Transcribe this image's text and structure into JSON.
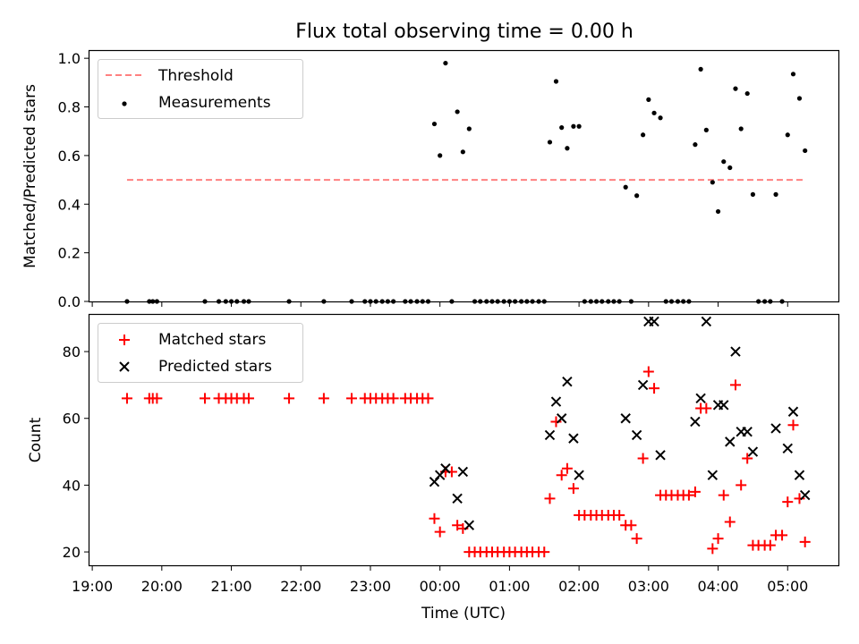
{
  "title": "Flux total observing time = 0.00 h",
  "chart_data": [
    {
      "type": "scatter",
      "ylabel": "Matched/Predicted stars",
      "ylim": [
        0,
        1.03
      ],
      "xlim": [
        18.96,
        29.73
      ],
      "yticks": [
        0.0,
        0.2,
        0.4,
        0.6,
        0.8,
        1.0
      ],
      "ytick_labels": [
        "0.0",
        "0.2",
        "0.4",
        "0.6",
        "0.8",
        "1.0"
      ],
      "legend_position": "top-left",
      "threshold": {
        "name": "Threshold",
        "value": 0.5,
        "x_range": [
          19.5,
          29.23
        ],
        "color": "#ff8080"
      },
      "series": [
        {
          "name": "Measurements",
          "marker": "dot",
          "color": "#000000",
          "points": [
            [
              19.5,
              0
            ],
            [
              19.82,
              0
            ],
            [
              19.87,
              0
            ],
            [
              19.93,
              0
            ],
            [
              20.62,
              0
            ],
            [
              20.82,
              0
            ],
            [
              20.92,
              0
            ],
            [
              21.0,
              0
            ],
            [
              21.08,
              0
            ],
            [
              21.18,
              0
            ],
            [
              21.25,
              0
            ],
            [
              21.83,
              0
            ],
            [
              22.33,
              0
            ],
            [
              22.73,
              0
            ],
            [
              22.92,
              0
            ],
            [
              23.0,
              0
            ],
            [
              23.08,
              0
            ],
            [
              23.17,
              0
            ],
            [
              23.25,
              0
            ],
            [
              23.33,
              0
            ],
            [
              23.5,
              0
            ],
            [
              23.58,
              0
            ],
            [
              23.67,
              0
            ],
            [
              23.75,
              0
            ],
            [
              23.83,
              0
            ],
            [
              23.92,
              0.73
            ],
            [
              24.0,
              0.6
            ],
            [
              24.08,
              0.98
            ],
            [
              24.17,
              0
            ],
            [
              24.25,
              0.78
            ],
            [
              24.33,
              0.615
            ],
            [
              24.42,
              0.71
            ],
            [
              24.5,
              0
            ],
            [
              24.58,
              0
            ],
            [
              24.67,
              0
            ],
            [
              24.75,
              0
            ],
            [
              24.83,
              0
            ],
            [
              24.92,
              0
            ],
            [
              25.0,
              0
            ],
            [
              25.08,
              0
            ],
            [
              25.17,
              0
            ],
            [
              25.25,
              0
            ],
            [
              25.33,
              0
            ],
            [
              25.42,
              0
            ],
            [
              25.5,
              0
            ],
            [
              25.58,
              0.655
            ],
            [
              25.67,
              0.905
            ],
            [
              25.75,
              0.715
            ],
            [
              25.83,
              0.63
            ],
            [
              25.92,
              0.72
            ],
            [
              26.0,
              0.72
            ],
            [
              26.08,
              0
            ],
            [
              26.17,
              0
            ],
            [
              26.25,
              0
            ],
            [
              26.33,
              0
            ],
            [
              26.42,
              0
            ],
            [
              26.5,
              0
            ],
            [
              26.58,
              0
            ],
            [
              26.67,
              0.47
            ],
            [
              26.75,
              0
            ],
            [
              26.83,
              0.435
            ],
            [
              26.92,
              0.685
            ],
            [
              27.0,
              0.83
            ],
            [
              27.08,
              0.775
            ],
            [
              27.17,
              0.755
            ],
            [
              27.25,
              0
            ],
            [
              27.33,
              0
            ],
            [
              27.42,
              0
            ],
            [
              27.5,
              0
            ],
            [
              27.58,
              0
            ],
            [
              27.67,
              0.645
            ],
            [
              27.75,
              0.955
            ],
            [
              27.83,
              0.705
            ],
            [
              27.92,
              0.49
            ],
            [
              28.0,
              0.37
            ],
            [
              28.08,
              0.575
            ],
            [
              28.17,
              0.55
            ],
            [
              28.25,
              0.875
            ],
            [
              28.33,
              0.71
            ],
            [
              28.42,
              0.855
            ],
            [
              28.5,
              0.44
            ],
            [
              28.58,
              0
            ],
            [
              28.67,
              0
            ],
            [
              28.75,
              0
            ],
            [
              28.83,
              0.44
            ],
            [
              28.92,
              0
            ],
            [
              29.0,
              0.685
            ],
            [
              29.08,
              0.935
            ],
            [
              29.17,
              0.835
            ],
            [
              29.25,
              0.62
            ]
          ]
        }
      ]
    },
    {
      "type": "scatter",
      "ylabel": "Count",
      "xlabel": "Time (UTC)",
      "ylim": [
        16,
        91
      ],
      "xlim": [
        18.96,
        29.73
      ],
      "yticks": [
        20,
        40,
        60,
        80
      ],
      "ytick_labels": [
        "20",
        "40",
        "60",
        "80"
      ],
      "xticks": [
        19,
        20,
        21,
        22,
        23,
        24,
        25,
        26,
        27,
        28,
        29
      ],
      "xtick_labels": [
        "19:00",
        "20:00",
        "21:00",
        "22:00",
        "23:00",
        "00:00",
        "01:00",
        "02:00",
        "03:00",
        "04:00",
        "05:00"
      ],
      "legend_position": "top-left",
      "series": [
        {
          "name": "Matched stars",
          "marker": "plus",
          "color": "#ff0000",
          "points": [
            [
              19.5,
              66
            ],
            [
              19.82,
              66
            ],
            [
              19.87,
              66
            ],
            [
              19.93,
              66
            ],
            [
              20.62,
              66
            ],
            [
              20.82,
              66
            ],
            [
              20.92,
              66
            ],
            [
              21.0,
              66
            ],
            [
              21.08,
              66
            ],
            [
              21.18,
              66
            ],
            [
              21.25,
              66
            ],
            [
              21.83,
              66
            ],
            [
              22.33,
              66
            ],
            [
              22.73,
              66
            ],
            [
              22.92,
              66
            ],
            [
              23.0,
              66
            ],
            [
              23.08,
              66
            ],
            [
              23.17,
              66
            ],
            [
              23.25,
              66
            ],
            [
              23.33,
              66
            ],
            [
              23.5,
              66
            ],
            [
              23.58,
              66
            ],
            [
              23.67,
              66
            ],
            [
              23.75,
              66
            ],
            [
              23.83,
              66
            ],
            [
              23.92,
              30
            ],
            [
              24.0,
              26
            ],
            [
              24.08,
              44
            ],
            [
              24.17,
              44
            ],
            [
              24.25,
              28
            ],
            [
              24.33,
              27
            ],
            [
              24.42,
              20
            ],
            [
              24.5,
              20
            ],
            [
              24.58,
              20
            ],
            [
              24.67,
              20
            ],
            [
              24.75,
              20
            ],
            [
              24.83,
              20
            ],
            [
              24.92,
              20
            ],
            [
              25.0,
              20
            ],
            [
              25.08,
              20
            ],
            [
              25.17,
              20
            ],
            [
              25.25,
              20
            ],
            [
              25.33,
              20
            ],
            [
              25.42,
              20
            ],
            [
              25.5,
              20
            ],
            [
              25.58,
              36
            ],
            [
              25.67,
              59
            ],
            [
              25.75,
              43
            ],
            [
              25.83,
              45
            ],
            [
              25.92,
              39
            ],
            [
              26.0,
              31
            ],
            [
              26.08,
              31
            ],
            [
              26.17,
              31
            ],
            [
              26.25,
              31
            ],
            [
              26.33,
              31
            ],
            [
              26.42,
              31
            ],
            [
              26.5,
              31
            ],
            [
              26.58,
              31
            ],
            [
              26.67,
              28
            ],
            [
              26.75,
              28
            ],
            [
              26.83,
              24
            ],
            [
              26.92,
              48
            ],
            [
              27.0,
              74
            ],
            [
              27.08,
              69
            ],
            [
              27.17,
              37
            ],
            [
              27.25,
              37
            ],
            [
              27.33,
              37
            ],
            [
              27.42,
              37
            ],
            [
              27.5,
              37
            ],
            [
              27.58,
              37
            ],
            [
              27.67,
              38
            ],
            [
              27.75,
              63
            ],
            [
              27.83,
              63
            ],
            [
              27.92,
              21
            ],
            [
              28.0,
              24
            ],
            [
              28.08,
              37
            ],
            [
              28.17,
              29
            ],
            [
              28.25,
              70
            ],
            [
              28.33,
              40
            ],
            [
              28.42,
              48
            ],
            [
              28.5,
              22
            ],
            [
              28.58,
              22
            ],
            [
              28.67,
              22
            ],
            [
              28.75,
              22
            ],
            [
              28.83,
              25
            ],
            [
              28.92,
              25
            ],
            [
              29.0,
              35
            ],
            [
              29.08,
              58
            ],
            [
              29.17,
              36
            ],
            [
              29.25,
              23
            ]
          ]
        },
        {
          "name": "Predicted stars",
          "marker": "x",
          "color": "#000000",
          "points": [
            [
              23.92,
              41
            ],
            [
              24.0,
              43
            ],
            [
              24.08,
              45
            ],
            [
              24.25,
              36
            ],
            [
              24.33,
              44
            ],
            [
              24.42,
              28
            ],
            [
              25.58,
              55
            ],
            [
              25.67,
              65
            ],
            [
              25.75,
              60
            ],
            [
              25.83,
              71
            ],
            [
              25.92,
              54
            ],
            [
              26.0,
              43
            ],
            [
              26.67,
              60
            ],
            [
              26.83,
              55
            ],
            [
              26.92,
              70
            ],
            [
              27.0,
              89
            ],
            [
              27.08,
              89
            ],
            [
              27.17,
              49
            ],
            [
              27.67,
              59
            ],
            [
              27.75,
              66
            ],
            [
              27.83,
              89
            ],
            [
              27.92,
              43
            ],
            [
              28.0,
              64
            ],
            [
              28.08,
              64
            ],
            [
              28.17,
              53
            ],
            [
              28.25,
              80
            ],
            [
              28.33,
              56
            ],
            [
              28.42,
              56
            ],
            [
              28.5,
              50
            ],
            [
              28.83,
              57
            ],
            [
              29.0,
              51
            ],
            [
              29.08,
              62
            ],
            [
              29.17,
              43
            ],
            [
              29.25,
              37
            ]
          ]
        }
      ]
    }
  ]
}
